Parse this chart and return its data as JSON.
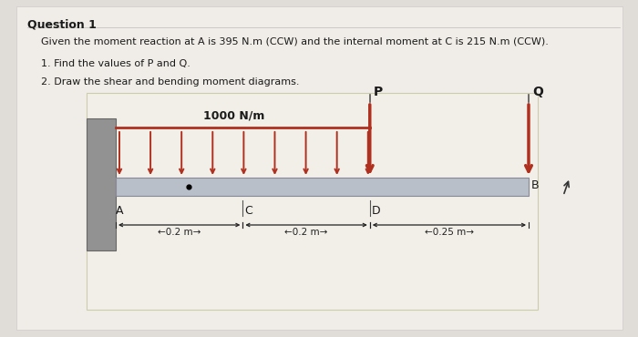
{
  "title": "Question 1",
  "given_text": "Given the moment reaction at A is 395 N.m (CCW) and the internal moment at C is 215 N.m (CCW).",
  "item1": "1. Find the values of P and Q.",
  "item2": "2. Draw the shear and bending moment diagrams.",
  "dist_load_label": "1000 N/m",
  "point_P": "P",
  "point_Q": "Q",
  "point_A": "A",
  "point_C": "C",
  "point_D": "D",
  "point_B": "B",
  "dim1": "←0.2 m→",
  "dim2": "←0.2 m→",
  "dim3": "←0.25 m→",
  "page_bg": "#e0ddd8",
  "paper_bg": "#f0ede8",
  "diagram_bg": "#f7f5f2",
  "beam_color": "#b8bfc8",
  "wall_color": "#888888",
  "load_color": "#b03020",
  "text_color": "#1a1a1a",
  "dim_color": "#222222",
  "title_fontsize": 9,
  "body_fontsize": 8,
  "label_fontsize": 8.5
}
